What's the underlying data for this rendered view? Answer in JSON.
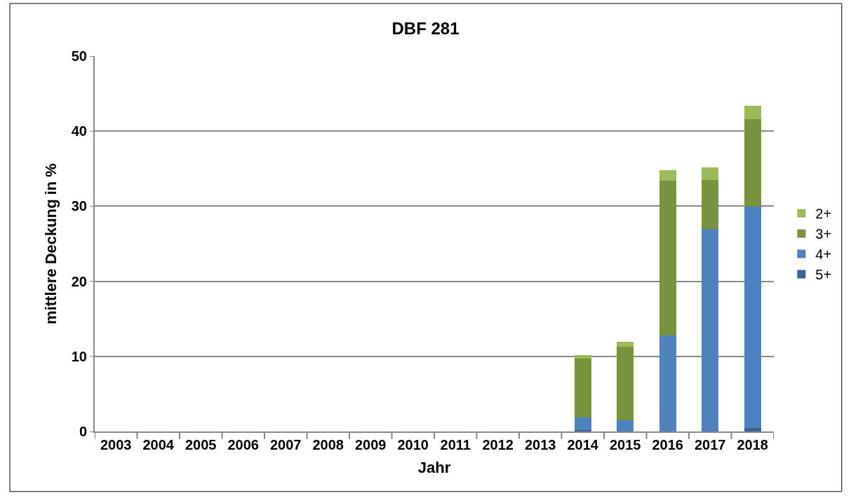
{
  "chart_data": {
    "type": "bar",
    "title": "DBF 281",
    "xlabel": "Jahr",
    "ylabel": "mittlere Deckung in %",
    "categories": [
      "2003",
      "2004",
      "2005",
      "2006",
      "2007",
      "2008",
      "2009",
      "2010",
      "2011",
      "2012",
      "2013",
      "2014",
      "2015",
      "2016",
      "2017",
      "2018"
    ],
    "stacked": true,
    "series": [
      {
        "name": "5+",
        "color": "#3a6497",
        "values": [
          null,
          null,
          null,
          null,
          null,
          null,
          null,
          null,
          null,
          null,
          null,
          0.2,
          null,
          null,
          null,
          0.5
        ]
      },
      {
        "name": "4+",
        "color": "#4f81bd",
        "values": [
          null,
          null,
          null,
          null,
          null,
          null,
          null,
          null,
          null,
          null,
          null,
          1.7,
          1.5,
          12.8,
          27.0,
          29.4
        ]
      },
      {
        "name": "3+",
        "color": "#77933c",
        "values": [
          null,
          null,
          null,
          null,
          null,
          null,
          null,
          null,
          null,
          null,
          null,
          7.8,
          9.8,
          20.6,
          6.5,
          11.7
        ]
      },
      {
        "name": "2+",
        "color": "#9bbb59",
        "values": [
          null,
          null,
          null,
          null,
          null,
          null,
          null,
          null,
          null,
          null,
          null,
          0.5,
          0.6,
          1.4,
          1.7,
          1.8
        ]
      }
    ],
    "ylim": [
      0,
      50
    ],
    "yticks": [
      0,
      10,
      20,
      30,
      40,
      50
    ],
    "grid": "y",
    "legend": "right"
  }
}
